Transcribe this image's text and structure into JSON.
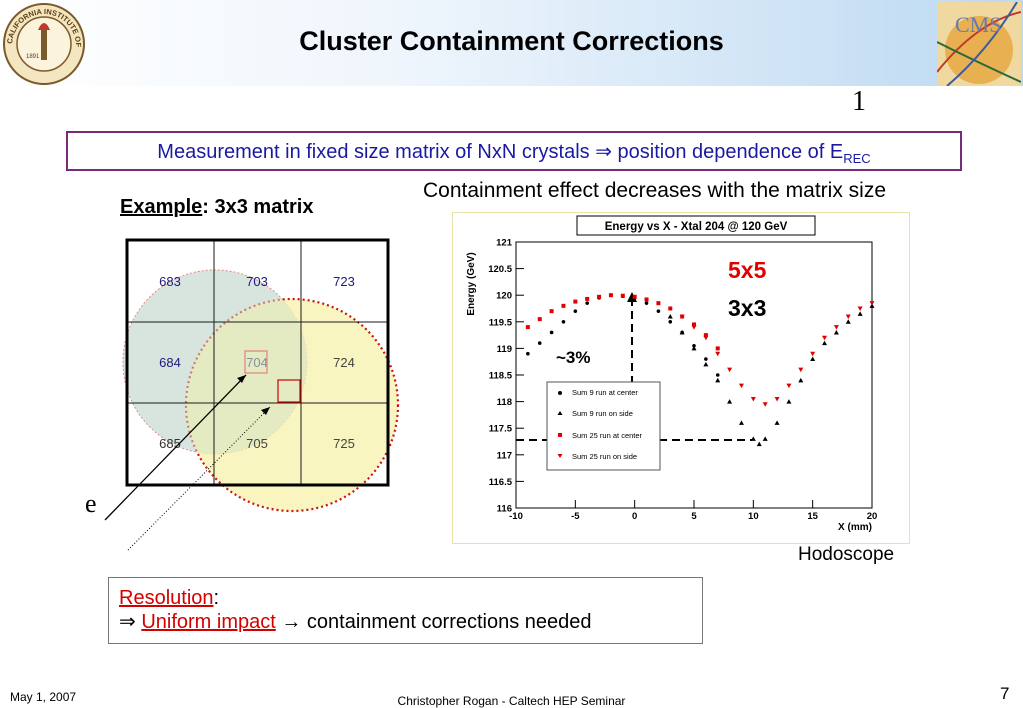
{
  "slide": {
    "title": "Cluster Containment Corrections",
    "note_number": "1",
    "measure_text_main": "Measurement in fixed size matrix of NxN crystals ⇒ position dependence of E",
    "measure_subscript": "REC",
    "containment_text": "Containment effect decreases with the matrix size",
    "example_label": "Example",
    "example_rest": ": 3x3 matrix",
    "electron_label": "e",
    "hodoscope_label": "Hodoscope",
    "date": "May 1, 2007",
    "footer": "Christopher Rogan - Caltech HEP Seminar",
    "page_number": "7"
  },
  "logos": {
    "caltech_text": "CALIFORNIA INSTITUTE OF TECHNOLOGY",
    "caltech_year": "1891",
    "cms_text": "CMS"
  },
  "matrix": {
    "cells": [
      [
        "683",
        "703",
        "723"
      ],
      [
        "684",
        "704",
        "724"
      ],
      [
        "685",
        "705",
        "725"
      ]
    ]
  },
  "resolution": {
    "label": "Resolution",
    "colon": ":",
    "arrow": "⇒",
    "uniform": "Uniform impact",
    "rest": " → containment corrections needed"
  },
  "colors": {
    "title_blue": "#1a1aa0",
    "red": "#d40000",
    "box_purple": "#7a2a7a"
  },
  "chart_data": {
    "type": "scatter",
    "title": "Energy vs X - Xtal 204 @ 120 GeV",
    "xlabel": "X (mm)",
    "ylabel": "Energy (GeV)",
    "xlim": [
      -10,
      20
    ],
    "ylim": [
      116,
      121
    ],
    "xticks": [
      "-10",
      "-5",
      "0",
      "5",
      "10",
      "15",
      "20"
    ],
    "yticks": [
      "116",
      "116.5",
      "117",
      "117.5",
      "118",
      "118.5",
      "119",
      "119.5",
      "120",
      "120.5",
      "121"
    ],
    "annotations": [
      "5x5",
      "3x3",
      "~3%"
    ],
    "legend": [
      "Sum 9 run at center",
      "Sum 9 run on side",
      "Sum 25 run at center",
      "Sum 25 run on side"
    ],
    "series": [
      {
        "name": "Sum 9 run at center",
        "x": [
          -9,
          -8,
          -7,
          -6,
          -5,
          -4,
          -3,
          -2,
          -1,
          0,
          1,
          2,
          3,
          4,
          5,
          6,
          7
        ],
        "y": [
          118.9,
          119.1,
          119.3,
          119.5,
          119.7,
          119.85,
          119.95,
          120.0,
          119.98,
          119.95,
          119.85,
          119.7,
          119.5,
          119.3,
          119.05,
          118.8,
          118.5
        ]
      },
      {
        "name": "Sum 9 run on side",
        "x": [
          3,
          4,
          5,
          6,
          7,
          8,
          9,
          10,
          10.5,
          11,
          12,
          13,
          14,
          15,
          16,
          17,
          18,
          19,
          20
        ],
        "y": [
          119.6,
          119.3,
          119.0,
          118.7,
          118.4,
          118.0,
          117.6,
          117.3,
          117.2,
          117.3,
          117.6,
          118.0,
          118.4,
          118.8,
          119.1,
          119.3,
          119.5,
          119.65,
          119.8
        ]
      },
      {
        "name": "Sum 25 run at center",
        "x": [
          -9,
          -8,
          -7,
          -6,
          -5,
          -4,
          -3,
          -2,
          -1,
          0,
          1,
          2,
          3,
          4,
          5,
          6,
          7
        ],
        "y": [
          119.4,
          119.55,
          119.7,
          119.8,
          119.88,
          119.93,
          119.97,
          120.0,
          119.99,
          119.97,
          119.92,
          119.85,
          119.75,
          119.6,
          119.45,
          119.25,
          119.0
        ]
      },
      {
        "name": "Sum 25 run on side",
        "x": [
          4,
          5,
          6,
          7,
          8,
          9,
          10,
          11,
          12,
          13,
          14,
          15,
          16,
          17,
          18,
          19,
          20
        ],
        "y": [
          119.6,
          119.4,
          119.2,
          118.9,
          118.6,
          118.3,
          118.05,
          117.95,
          118.05,
          118.3,
          118.6,
          118.9,
          119.2,
          119.4,
          119.6,
          119.75,
          119.85
        ]
      }
    ]
  }
}
